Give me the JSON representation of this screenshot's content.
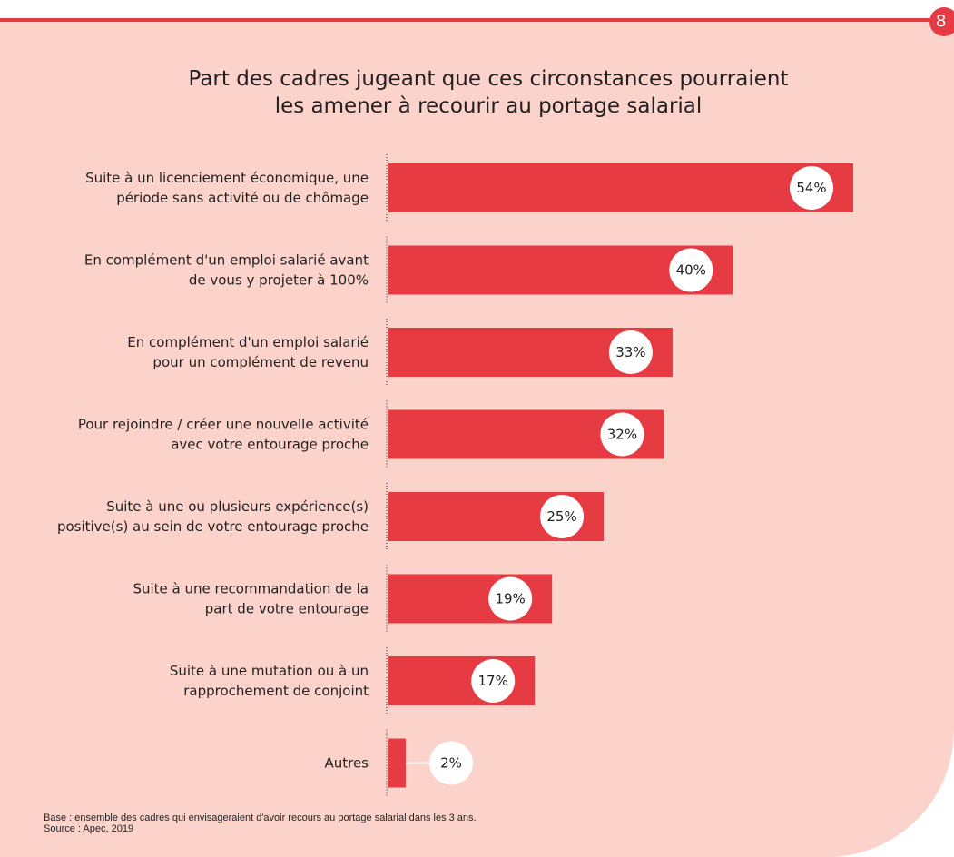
{
  "page_number": "8",
  "colors": {
    "accent": "#e63b43",
    "panel": "#fbd3cb",
    "text": "#231f20"
  },
  "chart_data": {
    "type": "bar",
    "orientation": "horizontal",
    "title": "Part des cadres jugeant que ces circonstances pourraient les amener à recourir au portage salarial",
    "title_lines": [
      "Part des cadres jugeant que ces circonstances pourraient",
      "les amener à recourir au portage salarial"
    ],
    "categories": [
      [
        "Suite à un licenciement économique, une",
        "période sans activité ou de chômage"
      ],
      [
        "En complément d'un emploi salarié avant",
        "de vous y projeter à 100%"
      ],
      [
        "En complément d'un emploi salarié",
        "pour un complément de revenu"
      ],
      [
        "Pour rejoindre / créer une nouvelle activité",
        "avec votre entourage proche"
      ],
      [
        "Suite à une ou plusieurs expérience(s)",
        "positive(s) au sein de votre entourage proche"
      ],
      [
        "Suite à une recommandation de la",
        "part de votre entourage"
      ],
      [
        "Suite à une mutation ou à un",
        "rapprochement de conjoint"
      ],
      [
        "Autres"
      ]
    ],
    "values": [
      54,
      40,
      33,
      32,
      25,
      19,
      17,
      2
    ],
    "value_labels": [
      "54%",
      "40%",
      "33%",
      "32%",
      "25%",
      "19%",
      "17%",
      "2%"
    ],
    "unit": "%",
    "xlim": [
      0,
      54
    ],
    "grid": false,
    "legend": "none"
  },
  "footnote": {
    "base": "Base : ensemble des cadres qui envisageraient d'avoir recours au portage salarial dans les 3 ans.",
    "source": "Source : Apec, 2019"
  }
}
